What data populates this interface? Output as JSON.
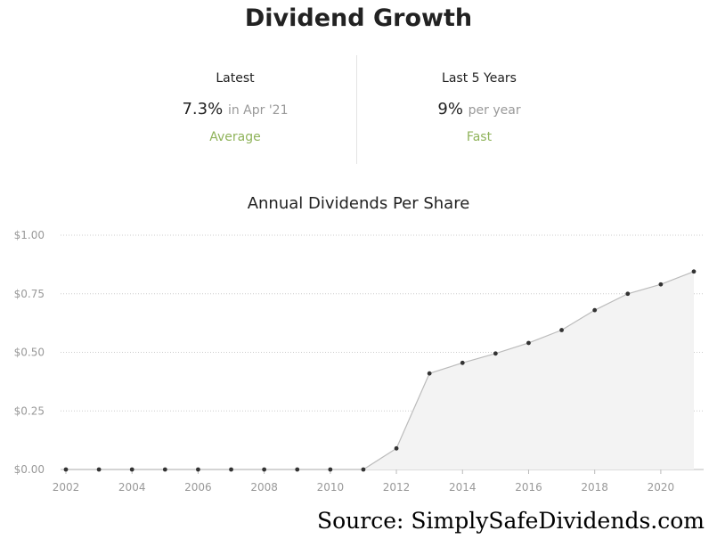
{
  "page": {
    "title": "Dividend Growth",
    "source": "Source: SimplySafeDividends.com"
  },
  "stats": {
    "latest": {
      "label": "Latest",
      "value": "7.3%",
      "detail": "in Apr '21",
      "rating": "Average"
    },
    "five_year": {
      "label": "Last 5 Years",
      "value": "9%",
      "detail": "per year",
      "rating": "Fast"
    }
  },
  "colors": {
    "rating": "#8fb35a",
    "area_fill": "#f3f3f3",
    "line": "#bbbbbb",
    "point": "#333333",
    "grid": "#cccccc"
  },
  "chart_data": {
    "type": "area",
    "title": "Annual Dividends Per Share",
    "x": [
      2002,
      2003,
      2004,
      2005,
      2006,
      2007,
      2008,
      2009,
      2010,
      2011,
      2012,
      2013,
      2014,
      2015,
      2016,
      2017,
      2018,
      2019,
      2020,
      2021
    ],
    "series": [
      {
        "values": [
          0,
          0,
          0,
          0,
          0,
          0,
          0,
          0,
          0,
          0,
          0.09,
          0.41,
          0.455,
          0.495,
          0.54,
          0.595,
          0.68,
          0.75,
          0.79,
          0.845
        ]
      }
    ],
    "xticks": [
      "2002",
      "2004",
      "2006",
      "2008",
      "2010",
      "2012",
      "2014",
      "2016",
      "2018",
      "2020"
    ],
    "yticks": [
      "$0.00",
      "$0.25",
      "$0.50",
      "$0.75",
      "$1.00"
    ],
    "ylim": [
      0,
      1
    ],
    "xlim": [
      2002,
      2021
    ],
    "grid": true,
    "xlabel": "",
    "ylabel": ""
  }
}
